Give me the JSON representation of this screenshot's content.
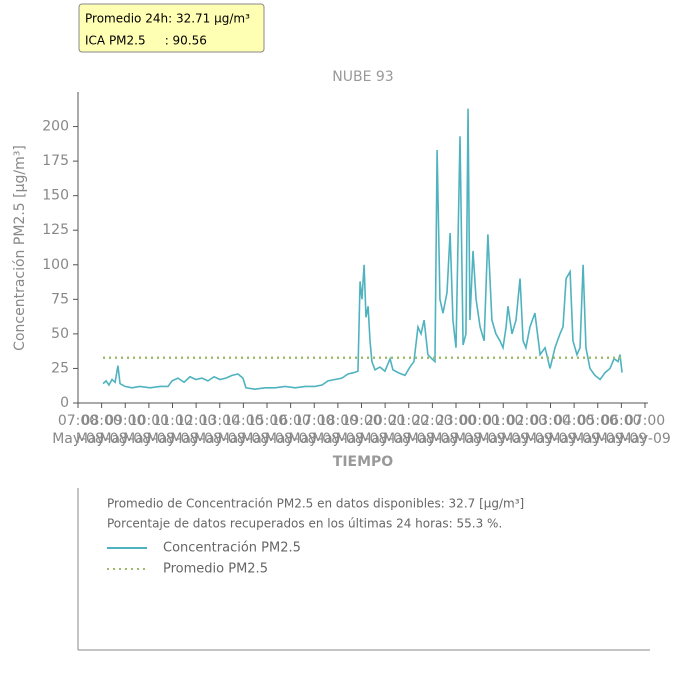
{
  "tooltip": {
    "lines": [
      "Promedio 24h: 32.71 μg/m³",
      "ICA PM2.5     : 90.56"
    ]
  },
  "chart_data": {
    "type": "line",
    "title": "NUBE 93",
    "xlabel": "TIEMPO",
    "ylabel": "Concentración PM2.5 [μg/m³]",
    "xlim": [
      0,
      24
    ],
    "ylim": [
      0,
      225
    ],
    "yticks": [
      0,
      25,
      50,
      75,
      100,
      125,
      150,
      175,
      200
    ],
    "grid": false,
    "xticks": [
      {
        "value": 0,
        "label": "07:00\nMay-08"
      },
      {
        "value": 1,
        "label": "08:00\nMay-08"
      },
      {
        "value": 2,
        "label": "09:00\nMay-08"
      },
      {
        "value": 3,
        "label": "10:00\nMay-08"
      },
      {
        "value": 4,
        "label": "11:00\nMay-08"
      },
      {
        "value": 5,
        "label": "12:00\nMay-08"
      },
      {
        "value": 6,
        "label": "13:00\nMay-08"
      },
      {
        "value": 7,
        "label": "14:00\nMay-08"
      },
      {
        "value": 8,
        "label": "15:00\nMay-08"
      },
      {
        "value": 9,
        "label": "16:00\nMay-08"
      },
      {
        "value": 10,
        "label": "17:00\nMay-08"
      },
      {
        "value": 11,
        "label": "18:00\nMay-08"
      },
      {
        "value": 12,
        "label": "19:00\nMay-08"
      },
      {
        "value": 13,
        "label": "20:00\nMay-08"
      },
      {
        "value": 14,
        "label": "21:00\nMay-08"
      },
      {
        "value": 15,
        "label": "22:00\nMay-08"
      },
      {
        "value": 16,
        "label": "23:00\nMay-08"
      },
      {
        "value": 17,
        "label": "00:00\nMay-09"
      },
      {
        "value": 18,
        "label": "01:00\nMay-09"
      },
      {
        "value": 19,
        "label": "02:00\nMay-09"
      },
      {
        "value": 20,
        "label": "03:00\nMay-09"
      },
      {
        "value": 21,
        "label": "04:00\nMay-09"
      },
      {
        "value": 22,
        "label": "05:00\nMay-09"
      },
      {
        "value": 23,
        "label": "06:00\nMay-09"
      },
      {
        "value": 24,
        "label": "07:00\nMay-09"
      }
    ],
    "x": [
      1.06,
      1.19,
      1.31,
      1.44,
      1.57,
      1.69,
      1.78,
      1.99,
      2.29,
      2.62,
      3.05,
      3.47,
      3.81,
      3.98,
      4.23,
      4.49,
      4.74,
      4.99,
      5.25,
      5.5,
      5.76,
      6.01,
      6.26,
      6.52,
      6.77,
      6.98,
      7.11,
      7.49,
      7.92,
      8.34,
      8.76,
      9.19,
      9.61,
      10.03,
      10.33,
      10.58,
      10.88,
      11.17,
      11.43,
      11.68,
      11.85,
      11.94,
      12.02,
      12.11,
      12.19,
      12.28,
      12.36,
      12.44,
      12.57,
      12.78,
      12.99,
      13.21,
      13.33,
      13.55,
      13.84,
      14.05,
      14.22,
      14.39,
      14.52,
      14.65,
      14.81,
      14.98,
      15.11,
      15.2,
      15.32,
      15.45,
      15.62,
      15.75,
      15.87,
      16.0,
      16.17,
      16.3,
      16.42,
      16.51,
      16.59,
      16.72,
      16.85,
      17.02,
      17.19,
      17.35,
      17.52,
      17.69,
      17.86,
      17.99,
      18.12,
      18.2,
      18.37,
      18.54,
      18.71,
      18.84,
      18.96,
      19.13,
      19.34,
      19.56,
      19.77,
      19.98,
      20.19,
      20.4,
      20.53,
      20.66,
      20.83,
      20.95,
      21.12,
      21.25,
      21.38,
      21.5,
      21.67,
      21.88,
      22.1,
      22.31,
      22.52,
      22.69,
      22.86,
      22.94,
      23.03
    ],
    "series": [
      {
        "name": "Concentración PM2.5",
        "color": "#4fb3bf",
        "style": "solid",
        "values": [
          14,
          16,
          13,
          17,
          15,
          27,
          14,
          12,
          11,
          12,
          11,
          12,
          12,
          16,
          18,
          15,
          19,
          17,
          18,
          16,
          19,
          17,
          18,
          20,
          21,
          18,
          11,
          10,
          11,
          11,
          12,
          11,
          12,
          12,
          13,
          16,
          17,
          18,
          21,
          22,
          23,
          88,
          75,
          100,
          62,
          70,
          45,
          30,
          24,
          26,
          23,
          32,
          24,
          22,
          20,
          26,
          30,
          55,
          50,
          60,
          35,
          32,
          30,
          183,
          75,
          65,
          80,
          123,
          60,
          40,
          193,
          42,
          50,
          213,
          60,
          110,
          75,
          55,
          45,
          122,
          60,
          50,
          45,
          40,
          55,
          70,
          50,
          60,
          90,
          45,
          40,
          55,
          65,
          35,
          40,
          25,
          40,
          50,
          55,
          90,
          95,
          45,
          35,
          40,
          100,
          40,
          25,
          20,
          17,
          22,
          25,
          32,
          30,
          35,
          22
        ]
      },
      {
        "name": "Promedio PM2.5",
        "color": "#9dbb6a",
        "style": "dotted",
        "x": [
          1.06,
          23.03
        ],
        "values": [
          32.71,
          32.71
        ]
      }
    ],
    "notes": [
      "Promedio de Concentración PM2.5 en datos disponibles: 32.7 [μg/m³]",
      "Porcentaje de datos recuperados en los últimas 24 horas: 55.3 %."
    ]
  }
}
